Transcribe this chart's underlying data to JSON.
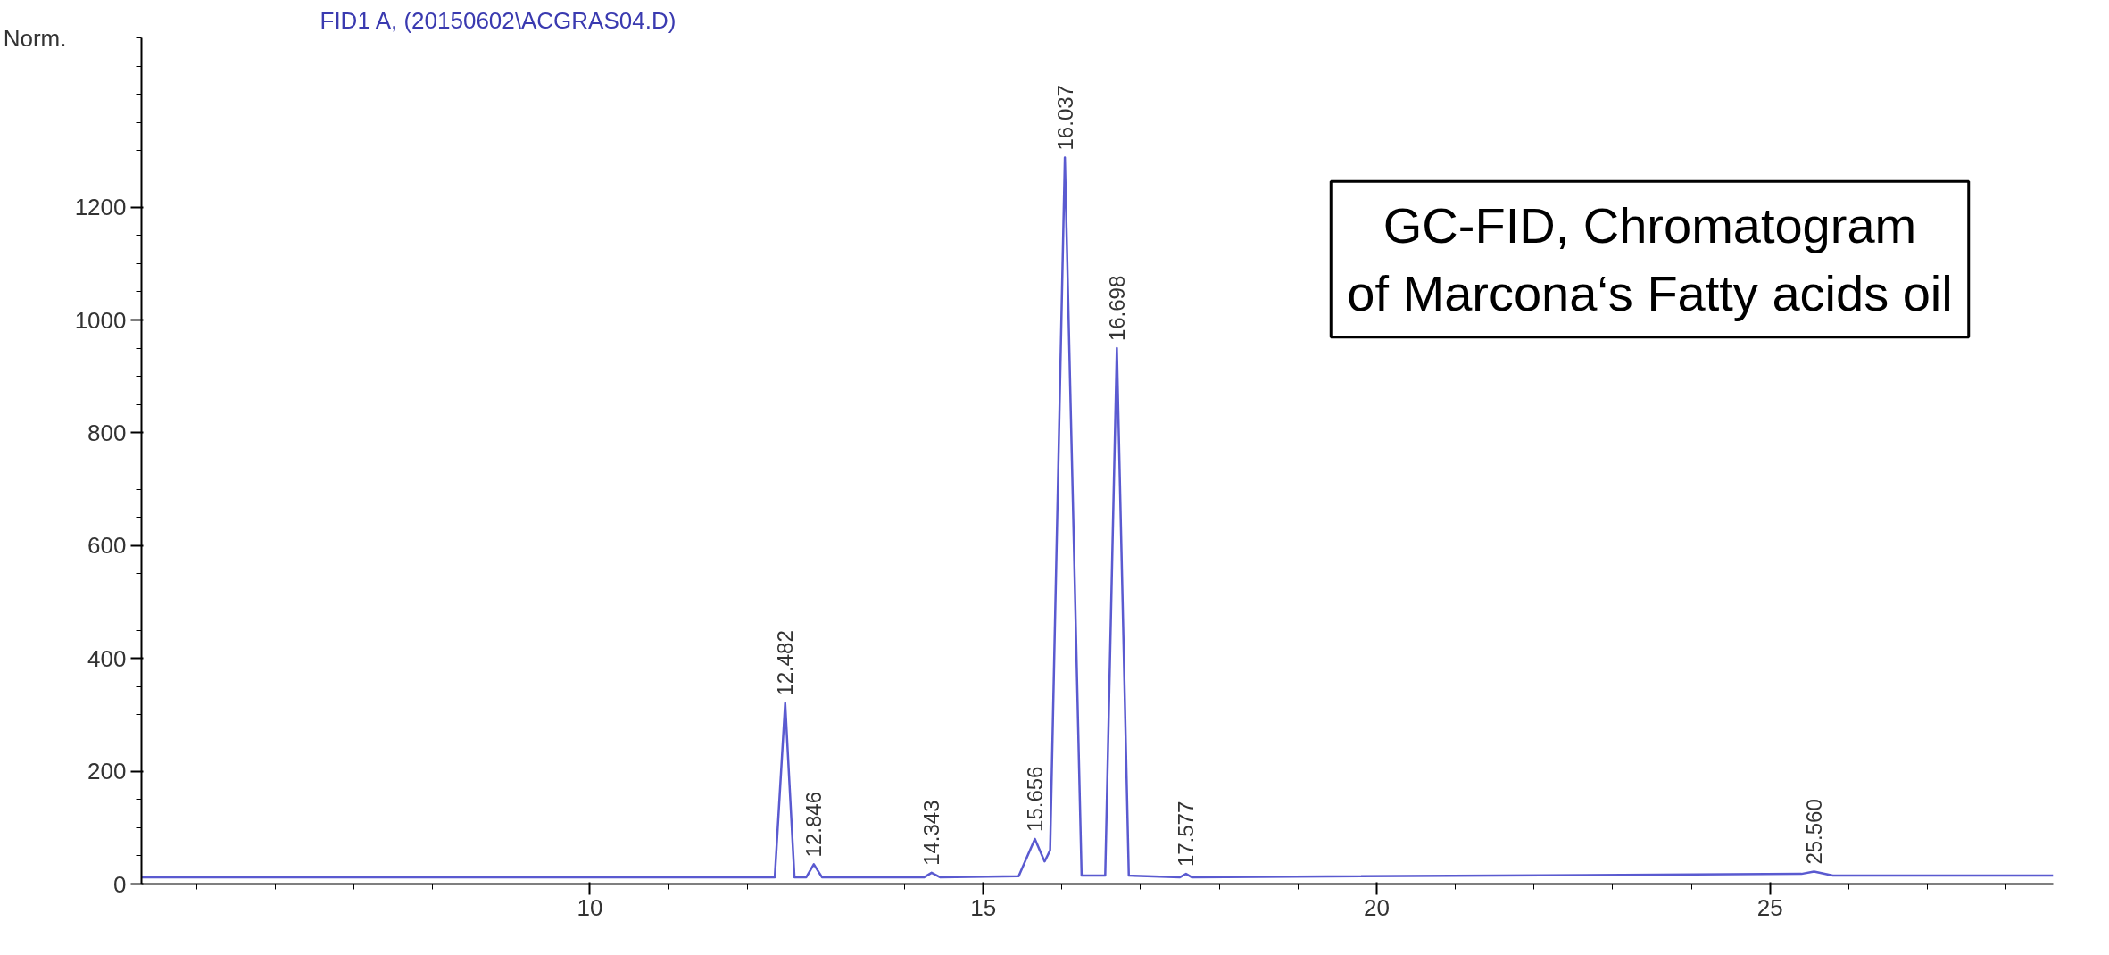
{
  "chart_data": {
    "type": "line",
    "title": "FID1 A, (20150602\\ACGRAS04.D)",
    "ylabel": "Norm.",
    "series": [
      {
        "color": "#5a5ad0",
        "x": [
          4.3,
          12.35,
          12.482,
          12.6,
          12.75,
          12.846,
          12.95,
          14.25,
          14.343,
          14.45,
          15.45,
          15.656,
          15.78,
          15.85,
          16.037,
          16.25,
          16.55,
          16.698,
          16.85,
          17.5,
          17.577,
          17.65,
          25.4,
          25.56,
          25.8,
          28.6
        ],
        "values": [
          12,
          12,
          321,
          12,
          12,
          35,
          12,
          12,
          20,
          12,
          14,
          80,
          40,
          60,
          1288,
          15,
          15,
          950,
          15,
          12,
          18,
          12,
          18,
          22,
          15,
          15
        ]
      }
    ],
    "xlim": [
      4.3,
      28.6
    ],
    "xticks": [
      10,
      15,
      20,
      25
    ],
    "ylim": [
      0,
      1500
    ],
    "yticks": [
      0,
      200,
      400,
      600,
      800,
      1000,
      1200
    ],
    "grid": false,
    "marker": "none",
    "line_style": "solid",
    "annotations": [
      {
        "text": "12.482",
        "x": 12.482,
        "y": 321
      },
      {
        "text": "12.846",
        "x": 12.846,
        "y": 35
      },
      {
        "text": "14.343",
        "x": 14.343,
        "y": 20
      },
      {
        "text": "15.656",
        "x": 15.656,
        "y": 80
      },
      {
        "text": "16.037",
        "x": 16.037,
        "y": 1288
      },
      {
        "text": "16.698",
        "x": 16.698,
        "y": 950
      },
      {
        "text": "17.577",
        "x": 17.577,
        "y": 18
      },
      {
        "text": "25.560",
        "x": 25.56,
        "y": 22
      },
      "GC-FID, Chromatogram\nof Marcona‘s Fatty acids oil"
    ]
  }
}
